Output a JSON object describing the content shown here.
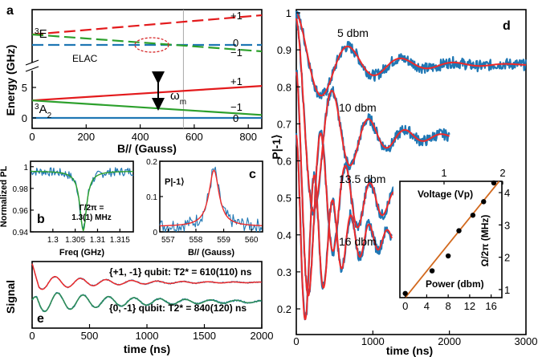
{
  "panel_a": {
    "letter": "a",
    "elac_label": "ELAC",
    "level_labels_e": [
      "+1",
      "0",
      "−1"
    ],
    "level_labels_a": [
      "+1",
      "−1",
      "0"
    ],
    "ylabel": "Energy (GHz)",
    "xlabel": "B// (Gauss)",
    "state_labels": [
      "3E",
      "3A2"
    ],
    "omega_label": "ωm"
  },
  "panel_b": {
    "letter": "b",
    "annotation_line1": "Γ/2π =",
    "annotation_line2": "1.3(1) MHz",
    "ylabel": "Normalized PL",
    "xlabel": "Freq (GHz)"
  },
  "panel_c": {
    "letter": "c",
    "ylabel": "P|-1⟩",
    "xlabel": "B// (Gauss)"
  },
  "panel_d": {
    "letter": "d",
    "curve_labels": [
      "5 dbm",
      "10 dbm",
      "13.5 dbm",
      "16 dbm"
    ],
    "ylabel": "P|-1⟩",
    "xlabel": "time (ns)",
    "inset": {
      "top_xlabel": "Voltage (Vp)",
      "bottom_xlabel": "Power (dbm)",
      "ylabel": "Ω/2π (MHz)"
    }
  },
  "panel_e": {
    "letter": "e",
    "annotation_top": "{+1, -1} qubit:  T2* = 610(110) ns",
    "annotation_bottom": "{0, -1} qubit:  T2* = 840(120) ns",
    "ylabel": "Signal",
    "xlabel": "time (ns)"
  },
  "colors": {
    "red": "#e31a1c",
    "green": "#2ca02c",
    "blue": "#1f77b4",
    "fit_red": "#ee2a2a",
    "fit_green": "#2e8b57",
    "orange": "#d2691e",
    "gray": "#aaaaaa"
  },
  "chart_data": [
    {
      "panel": "a",
      "type": "line",
      "title": "",
      "xlabel": "B// (Gauss)",
      "ylabel": "Energy (GHz)",
      "xlim": [
        0,
        850
      ],
      "x_ticks": [
        0,
        200,
        400,
        600,
        800
      ],
      "y_ticks_lower": [
        0,
        5
      ],
      "lower_ylim": [
        -0.3,
        6
      ],
      "marker_x": 560,
      "series": [
        {
          "name": "3E +1",
          "style": "dashed",
          "color": "red",
          "x": [
            0,
            850
          ],
          "y_rel": [
            0,
            1
          ]
        },
        {
          "name": "3E 0",
          "style": "dashed",
          "color": "blue",
          "x": [
            0,
            850
          ],
          "y_rel": [
            0,
            0
          ]
        },
        {
          "name": "3E -1",
          "style": "dashed",
          "color": "green",
          "x": [
            0,
            850
          ],
          "y_rel": [
            0,
            -1
          ]
        },
        {
          "name": "3A2 +1",
          "color": "red",
          "x": [
            0,
            850
          ],
          "y": [
            2.87,
            5.25
          ]
        },
        {
          "name": "3A2 -1",
          "color": "green",
          "x": [
            0,
            850
          ],
          "y": [
            2.87,
            0.49
          ]
        },
        {
          "name": "3A2 0",
          "color": "blue",
          "x": [
            0,
            850
          ],
          "y": [
            0,
            0
          ]
        }
      ]
    },
    {
      "panel": "b",
      "type": "line",
      "xlabel": "Freq (GHz)",
      "ylabel": "Normalized PL",
      "xlim": [
        1.295,
        1.318
      ],
      "ylim": [
        0.94,
        1.005
      ],
      "x_ticks": [
        1.3,
        1.305,
        1.31,
        1.315
      ],
      "x_tick_labels": [
        "1.3",
        "1.305",
        "1.31",
        "1.315"
      ],
      "y_ticks": [
        0.94,
        0.96,
        0.98,
        1
      ],
      "y_tick_labels": [
        "0.94",
        "0.96",
        "0.98",
        "1"
      ],
      "dip_center": 1.3068,
      "dip_depth": 0.055,
      "linewidth_MHz": 1.3
    },
    {
      "panel": "c",
      "type": "line",
      "xlabel": "B// (Gauss)",
      "ylabel": "P|-1⟩",
      "xlim": [
        556.7,
        560.4
      ],
      "ylim": [
        0,
        0.2
      ],
      "x_ticks": [
        557,
        558,
        559,
        560
      ],
      "y_ticks": [
        0,
        0.1,
        0.2
      ],
      "y_tick_labels": [
        "0",
        "0.1",
        "0.2"
      ],
      "peak_center": 558.65,
      "peak_height": 0.16
    },
    {
      "panel": "d",
      "type": "line",
      "xlabel": "time (ns)",
      "ylabel": "P|-1⟩",
      "xlim": [
        0,
        3000
      ],
      "ylim": [
        0.15,
        1.0
      ],
      "x_ticks": [
        0,
        1000,
        2000,
        3000
      ],
      "y_ticks": [
        0.2,
        0.3,
        0.4,
        0.5,
        0.6,
        0.7,
        0.8,
        0.9,
        1
      ],
      "y_tick_labels": [
        "0.2",
        "0.3",
        "0.4",
        "0.5",
        "0.6",
        "0.7",
        "0.8",
        "0.9",
        "1"
      ],
      "series": [
        {
          "name": "5 dbm",
          "offset": 0.86,
          "amplitude": 0.14,
          "freq_MHz": 1.45,
          "tau_ns": 650,
          "xmax": 3000
        },
        {
          "name": "10 dbm",
          "offset": 0.665,
          "amplitude": 0.32,
          "freq_MHz": 2.1,
          "tau_ns": 500,
          "xmax": 2000
        },
        {
          "name": "13.5 dbm",
          "offset": 0.49,
          "amplitude": 0.35,
          "freq_MHz": 3.1,
          "tau_ns": 500,
          "xmax": 1500
        },
        {
          "name": "16 dbm",
          "offset": 0.39,
          "amplitude": 0.28,
          "freq_MHz": 4.2,
          "tau_ns": 480,
          "xmax": 1250
        }
      ],
      "inset": {
        "type": "scatter",
        "bottom_axis": {
          "label": "Power (dbm)",
          "ticks": [
            0,
            4,
            8,
            12,
            16
          ],
          "lim": [
            -1,
            18
          ]
        },
        "top_axis": {
          "label": "Voltage (Vp)",
          "ticks": [
            1,
            2
          ]
        },
        "y_axis": {
          "label": "Ω/2π (MHz)",
          "ticks": [
            1,
            2,
            3,
            4
          ],
          "lim": [
            0.75,
            4.35
          ]
        },
        "points": [
          {
            "x": 0,
            "y": 0.88
          },
          {
            "x": 5,
            "y": 1.58
          },
          {
            "x": 8,
            "y": 2.04
          },
          {
            "x": 10,
            "y": 2.82
          },
          {
            "x": 12.6,
            "y": 3.3
          },
          {
            "x": 14.6,
            "y": 3.72
          },
          {
            "x": 16.5,
            "y": 4.3
          }
        ],
        "fit_line": {
          "x": [
            0,
            17.5
          ],
          "y": [
            0.75,
            4.35
          ]
        }
      }
    },
    {
      "panel": "e",
      "type": "line",
      "xlabel": "time (ns)",
      "ylabel": "Signal",
      "xlim": [
        0,
        2000
      ],
      "x_ticks": [
        0,
        500,
        1000,
        1500,
        2000
      ],
      "series": [
        {
          "name": "{+1, -1} qubit",
          "T2_star_ns": 610
        },
        {
          "name": "{0, -1} qubit",
          "T2_star_ns": 840
        }
      ]
    }
  ]
}
